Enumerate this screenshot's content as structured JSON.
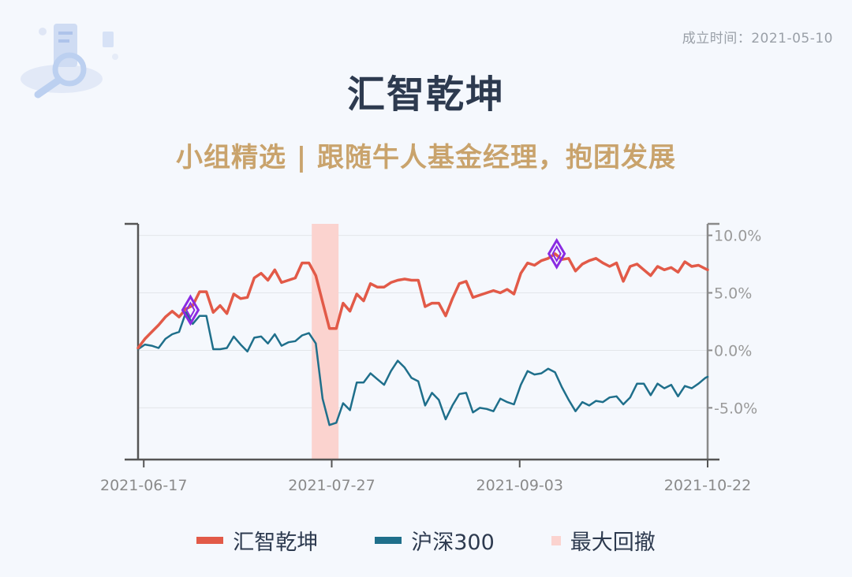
{
  "header": {
    "founded_label": "成立时间：2021-05-10",
    "title": "汇智乾坤",
    "subtitle": "小组精选 | 跟随牛人基金经理，抱团发展"
  },
  "colors": {
    "fund": "#e25a48",
    "index": "#1f6f8b",
    "drawdown": "#fbd3cf",
    "marker": "#8a2be2",
    "axis": "#555555"
  },
  "chart_data": {
    "type": "line",
    "x_tick_labels": [
      "2021-06-17",
      "2021-07-27",
      "2021-09-03",
      "2021-10-22"
    ],
    "y_tick_labels": [
      "10.0%",
      "5.0%",
      "0.0%",
      "-5.0%"
    ],
    "y_ticks": [
      10,
      5,
      0,
      -5
    ],
    "ylim": [
      -9.5,
      11
    ],
    "x_range": [
      0,
      100
    ],
    "x_tick_positions": [
      1,
      34,
      67,
      100
    ],
    "y_axis_position": "right",
    "grid": true,
    "drawdown_range": [
      30.5,
      35.2
    ],
    "markers": [
      {
        "x": 9.2,
        "y": 3.5
      },
      {
        "x": 73.5,
        "y": 8.4
      }
    ],
    "series": [
      {
        "name": "汇智乾坤",
        "role": "fund",
        "x": [
          0,
          1.2,
          2.4,
          3.6,
          4.8,
          6,
          7.2,
          8.4,
          9.6,
          10.8,
          12,
          13.2,
          14.4,
          15.6,
          16.8,
          18,
          19.2,
          20.4,
          21.6,
          22.8,
          24,
          25.2,
          26.4,
          27.6,
          28.8,
          30,
          31.2,
          32.4,
          33.6,
          34.8,
          36,
          37.2,
          38.4,
          39.6,
          40.8,
          42,
          43.2,
          44.4,
          45.6,
          46.8,
          48,
          49.2,
          50.4,
          51.6,
          52.8,
          54,
          55.2,
          56.4,
          57.6,
          58.8,
          60,
          61.2,
          62.4,
          63.6,
          64.8,
          66,
          67.2,
          68.4,
          69.6,
          70.8,
          72,
          73.2,
          74.4,
          75.6,
          76.8,
          78,
          79.2,
          80.4,
          81.6,
          82.8,
          84,
          85.2,
          86.4,
          87.6,
          88.8,
          90,
          91.2,
          92.4,
          93.6,
          94.8,
          96,
          97.2,
          98.4,
          99.6,
          100
        ],
        "values": [
          0.2,
          1.0,
          1.6,
          2.2,
          2.9,
          3.4,
          2.9,
          3.6,
          3.9,
          5.1,
          5.1,
          3.3,
          3.9,
          3.2,
          4.9,
          4.5,
          4.6,
          6.3,
          6.7,
          6.1,
          7.0,
          5.9,
          6.1,
          6.3,
          7.6,
          7.6,
          6.5,
          4.2,
          1.9,
          1.9,
          4.1,
          3.4,
          4.9,
          4.3,
          5.8,
          5.5,
          5.5,
          5.9,
          6.1,
          6.2,
          6.1,
          6.1,
          3.8,
          4.1,
          4.1,
          3.0,
          4.5,
          5.8,
          6.0,
          4.6,
          4.8,
          5.0,
          5.2,
          5.0,
          5.3,
          4.9,
          6.7,
          7.6,
          7.4,
          7.8,
          8.0,
          8.4,
          7.9,
          8.0,
          6.9,
          7.5,
          7.8,
          8.0,
          7.6,
          7.3,
          7.6,
          6.0,
          7.3,
          7.5,
          7.0,
          6.5,
          7.3,
          7.0,
          7.2,
          6.8,
          7.7,
          7.3,
          7.4,
          7.1,
          7.0
        ]
      },
      {
        "name": "沪深300",
        "role": "index",
        "x": [
          0,
          1.2,
          2.4,
          3.6,
          4.8,
          6,
          7.2,
          8.4,
          9.6,
          10.8,
          12,
          13.2,
          14.4,
          15.6,
          16.8,
          18,
          19.2,
          20.4,
          21.6,
          22.8,
          24,
          25.2,
          26.4,
          27.6,
          28.8,
          30,
          31.2,
          32.4,
          33.6,
          34.8,
          36,
          37.2,
          38.4,
          39.6,
          40.8,
          42,
          43.2,
          44.4,
          45.6,
          46.8,
          48,
          49.2,
          50.4,
          51.6,
          52.8,
          54,
          55.2,
          56.4,
          57.6,
          58.8,
          60,
          61.2,
          62.4,
          63.6,
          64.8,
          66,
          67.2,
          68.4,
          69.6,
          70.8,
          72,
          73.2,
          74.4,
          75.6,
          76.8,
          78,
          79.2,
          80.4,
          81.6,
          82.8,
          84,
          85.2,
          86.4,
          87.6,
          88.8,
          90,
          91.2,
          92.4,
          93.6,
          94.8,
          96,
          97.2,
          98.4,
          99.6,
          100
        ],
        "values": [
          0.1,
          0.5,
          0.4,
          0.2,
          1.0,
          1.4,
          1.6,
          3.3,
          2.3,
          3.0,
          3.0,
          0.1,
          0.1,
          0.2,
          1.2,
          0.5,
          -0.1,
          1.1,
          1.2,
          0.6,
          1.4,
          0.4,
          0.7,
          0.8,
          1.3,
          1.5,
          0.6,
          -4.2,
          -6.5,
          -6.3,
          -4.6,
          -5.2,
          -2.8,
          -2.8,
          -2.0,
          -2.5,
          -3.0,
          -1.8,
          -0.9,
          -1.5,
          -2.4,
          -2.7,
          -4.8,
          -3.7,
          -4.3,
          -6.0,
          -4.8,
          -3.8,
          -3.7,
          -5.4,
          -5.0,
          -5.1,
          -5.3,
          -4.2,
          -4.5,
          -4.7,
          -3.0,
          -1.8,
          -2.1,
          -2.0,
          -1.6,
          -1.9,
          -3.2,
          -4.3,
          -5.3,
          -4.5,
          -4.8,
          -4.4,
          -4.5,
          -4.1,
          -4.0,
          -4.7,
          -4.1,
          -2.9,
          -2.9,
          -3.9,
          -2.9,
          -3.3,
          -3.0,
          -4.0,
          -3.1,
          -3.3,
          -2.9,
          -2.4,
          -2.3
        ]
      }
    ],
    "legend": [
      {
        "label": "汇智乾坤",
        "kind": "line",
        "color": "#e25a48"
      },
      {
        "label": "沪深300",
        "kind": "line",
        "color": "#1f6f8b"
      },
      {
        "label": "最大回撤",
        "kind": "area",
        "color": "#fbd3cf"
      }
    ],
    "legend_position": "bottom"
  }
}
